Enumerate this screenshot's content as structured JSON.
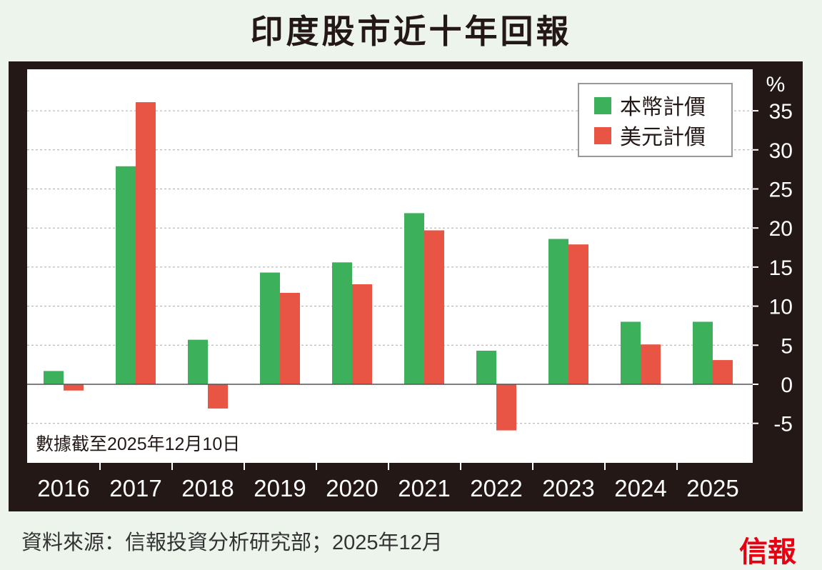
{
  "title": "印度股市近十年回報",
  "source": "資料來源：信報投資分析研究部；2025年12月",
  "logo": "信報",
  "chart_data": {
    "type": "bar",
    "title": "印度股市近十年回報",
    "ylabel": "%",
    "categories": [
      "2016",
      "2017",
      "2018",
      "2019",
      "2020",
      "2021",
      "2022",
      "2023",
      "2024",
      "2025"
    ],
    "series": [
      {
        "name": "本幣計價",
        "color": "#3cb05a",
        "values": [
          1.7,
          27.9,
          5.7,
          14.3,
          15.6,
          21.9,
          4.3,
          18.6,
          8.0,
          8.0
        ]
      },
      {
        "name": "美元計價",
        "color": "#e85545",
        "values": [
          -0.8,
          36.1,
          -3.1,
          11.7,
          12.8,
          19.7,
          -5.9,
          17.9,
          5.1,
          3.1
        ]
      }
    ],
    "ylim": [
      -10,
      40
    ],
    "yticks": [
      -5,
      0,
      5,
      10,
      15,
      20,
      25,
      30,
      35
    ],
    "grid": true,
    "legend": "top-right",
    "annotation": "數據截至2025年12月10日"
  }
}
